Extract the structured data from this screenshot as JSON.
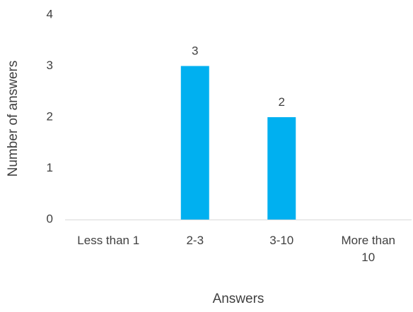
{
  "chart_data": {
    "type": "bar",
    "title": "",
    "xlabel": "Answers",
    "ylabel": "Number of answers",
    "categories": [
      [
        "Less than 1"
      ],
      [
        "2-3"
      ],
      [
        "3-10"
      ],
      [
        "More than",
        "10"
      ]
    ],
    "values": [
      0,
      3,
      2,
      0
    ],
    "data_labels": [
      "",
      "3",
      "2",
      ""
    ],
    "ylim": [
      0,
      4
    ],
    "yticks": [
      0,
      1,
      2,
      3,
      4
    ],
    "grid": false,
    "legend": "none",
    "bar_color": "#00B0F0",
    "axis_color": "#D9D9D9",
    "text_color": "#404040"
  }
}
